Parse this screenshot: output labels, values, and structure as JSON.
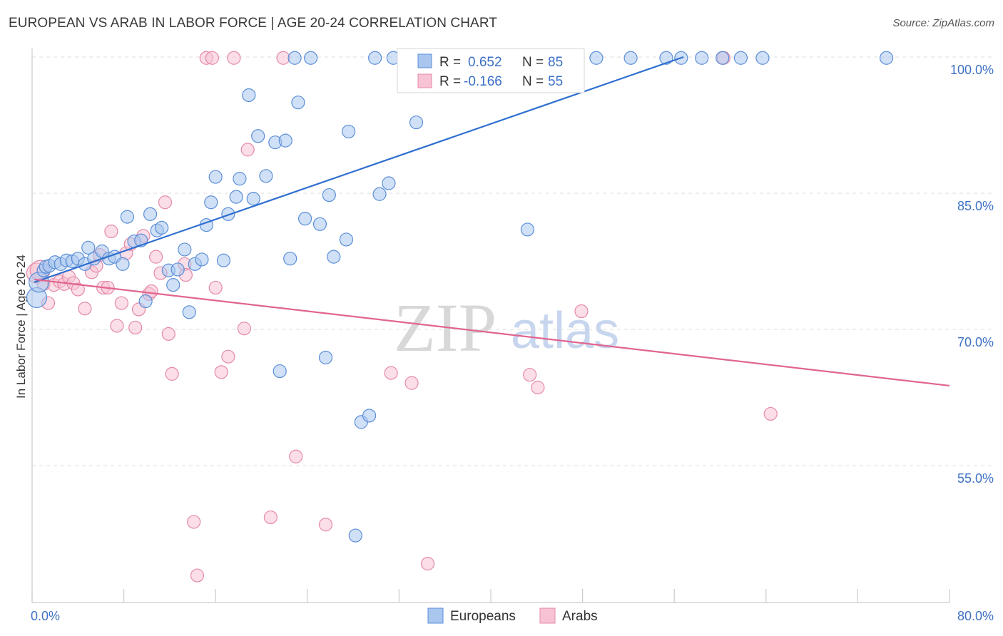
{
  "header": {
    "title": "EUROPEAN VS ARAB IN LABOR FORCE | AGE 20-24 CORRELATION CHART",
    "source": "Source: ZipAtlas.com"
  },
  "watermark": {
    "zip": "ZIP",
    "atlas": "atlas"
  },
  "colors": {
    "europeans_fill": "#a9c6ef",
    "europeans_stroke": "#5b8fd8",
    "europeans_line": "#2f6fd0",
    "arabs_fill": "#f7c3d4",
    "arabs_stroke": "#e58aa8",
    "arabs_line": "#e0658f",
    "tick_label": "#3f72c4",
    "grid": "#dddddd"
  },
  "legend_top": {
    "europeans": {
      "r_label": "R =",
      "r_value": "0.652",
      "n_label": "N =",
      "n_value": "85"
    },
    "arabs": {
      "r_label": "R =",
      "r_value": "-0.166",
      "n_label": "N =",
      "n_value": "55"
    }
  },
  "legend_bottom": {
    "europeans": "Europeans",
    "arabs": "Arabs"
  },
  "chart_data": {
    "type": "scatter",
    "title": "EUROPEAN VS ARAB IN LABOR FORCE | AGE 20-24 CORRELATION CHART",
    "xlabel": "",
    "ylabel": "In Labor Force | Age 20-24",
    "xlim": [
      0,
      80
    ],
    "ylim": [
      39,
      101
    ],
    "x_tick_labels": [
      {
        "value": 0,
        "label": "0.0%"
      },
      {
        "value": 80,
        "label": "80.0%"
      }
    ],
    "y_tick_labels": [
      {
        "value": 100,
        "label": "100.0%"
      },
      {
        "value": 85,
        "label": "85.0%"
      },
      {
        "value": 70,
        "label": "70.0%"
      },
      {
        "value": 55,
        "label": "55.0%"
      }
    ],
    "grid": true,
    "series": [
      {
        "name": "Europeans",
        "R": 0.652,
        "N": 85,
        "trend": {
          "x": [
            0.2,
            56.8
          ],
          "y": [
            75.2,
            100
          ]
        },
        "points": [
          [
            0.4,
            73.5
          ],
          [
            0.6,
            75.2
          ],
          [
            1.0,
            76.5
          ],
          [
            1.2,
            76.9
          ],
          [
            1.5,
            77.0
          ],
          [
            2.0,
            77.4
          ],
          [
            2.5,
            77.2
          ],
          [
            3.0,
            77.6
          ],
          [
            3.5,
            77.5
          ],
          [
            4.0,
            77.8
          ],
          [
            4.6,
            77.2
          ],
          [
            4.9,
            79.0
          ],
          [
            5.4,
            77.8
          ],
          [
            6.1,
            78.6
          ],
          [
            6.7,
            77.8
          ],
          [
            7.2,
            78.0
          ],
          [
            7.9,
            77.2
          ],
          [
            8.3,
            82.4
          ],
          [
            8.9,
            79.7
          ],
          [
            9.5,
            79.8
          ],
          [
            9.9,
            73.1
          ],
          [
            10.3,
            82.7
          ],
          [
            10.9,
            80.9
          ],
          [
            11.3,
            81.2
          ],
          [
            11.9,
            76.5
          ],
          [
            12.3,
            74.9
          ],
          [
            12.7,
            76.6
          ],
          [
            13.3,
            78.8
          ],
          [
            13.7,
            71.9
          ],
          [
            14.2,
            77.2
          ],
          [
            14.8,
            77.7
          ],
          [
            15.2,
            81.5
          ],
          [
            15.6,
            84.0
          ],
          [
            16.0,
            86.8
          ],
          [
            16.7,
            77.6
          ],
          [
            17.1,
            82.7
          ],
          [
            17.8,
            84.6
          ],
          [
            18.1,
            86.6
          ],
          [
            18.9,
            95.8
          ],
          [
            19.3,
            84.4
          ],
          [
            19.7,
            91.3
          ],
          [
            20.4,
            86.9
          ],
          [
            21.2,
            90.6
          ],
          [
            21.6,
            65.4
          ],
          [
            22.1,
            90.8
          ],
          [
            22.5,
            77.8
          ],
          [
            22.9,
            99.9
          ],
          [
            23.2,
            95.0
          ],
          [
            23.8,
            82.2
          ],
          [
            24.3,
            99.9
          ],
          [
            25.1,
            81.6
          ],
          [
            25.6,
            66.9
          ],
          [
            25.9,
            84.8
          ],
          [
            26.3,
            78.0
          ],
          [
            27.4,
            79.9
          ],
          [
            27.6,
            91.8
          ],
          [
            28.2,
            47.3
          ],
          [
            28.7,
            59.8
          ],
          [
            29.4,
            60.5
          ],
          [
            29.9,
            99.9
          ],
          [
            30.3,
            84.9
          ],
          [
            31.1,
            86.1
          ],
          [
            31.5,
            99.9
          ],
          [
            32.8,
            99.9
          ],
          [
            33.5,
            92.8
          ],
          [
            34.4,
            99.9
          ],
          [
            35.3,
            99.9
          ],
          [
            36.5,
            99.9
          ],
          [
            38.2,
            99.9
          ],
          [
            39.3,
            99.9
          ],
          [
            40.1,
            99.9
          ],
          [
            41.3,
            99.9
          ],
          [
            42.3,
            99.9
          ],
          [
            43.2,
            81.0
          ],
          [
            44.1,
            99.9
          ],
          [
            46.2,
            99.9
          ],
          [
            49.2,
            99.9
          ],
          [
            52.2,
            99.9
          ],
          [
            55.3,
            99.9
          ],
          [
            56.6,
            99.9
          ],
          [
            58.4,
            99.9
          ],
          [
            60.2,
            99.9
          ],
          [
            61.8,
            99.9
          ],
          [
            63.7,
            99.9
          ],
          [
            74.5,
            99.9
          ]
        ]
      },
      {
        "name": "Arabs",
        "R": -0.166,
        "N": 55,
        "trend": {
          "x": [
            0.2,
            80
          ],
          "y": [
            75.5,
            63.8
          ]
        },
        "points": [
          [
            0.4,
            76.2
          ],
          [
            0.7,
            76.5
          ],
          [
            1.0,
            75.0
          ],
          [
            1.4,
            72.9
          ],
          [
            1.9,
            74.9
          ],
          [
            2.4,
            75.3
          ],
          [
            2.8,
            75.0
          ],
          [
            3.2,
            75.8
          ],
          [
            3.6,
            75.1
          ],
          [
            4.0,
            74.4
          ],
          [
            4.6,
            72.3
          ],
          [
            5.2,
            76.3
          ],
          [
            5.6,
            77.0
          ],
          [
            5.9,
            78.2
          ],
          [
            6.2,
            74.6
          ],
          [
            6.6,
            74.6
          ],
          [
            6.9,
            80.8
          ],
          [
            7.4,
            70.4
          ],
          [
            7.8,
            72.9
          ],
          [
            8.2,
            78.4
          ],
          [
            8.6,
            79.4
          ],
          [
            9.0,
            70.2
          ],
          [
            9.3,
            72.2
          ],
          [
            9.7,
            80.3
          ],
          [
            10.2,
            73.9
          ],
          [
            10.4,
            74.2
          ],
          [
            10.8,
            78.0
          ],
          [
            11.2,
            76.2
          ],
          [
            11.6,
            84.0
          ],
          [
            11.9,
            69.5
          ],
          [
            12.2,
            65.1
          ],
          [
            13.3,
            77.2
          ],
          [
            13.4,
            76.0
          ],
          [
            14.1,
            48.8
          ],
          [
            14.4,
            42.9
          ],
          [
            15.2,
            99.9
          ],
          [
            15.7,
            99.9
          ],
          [
            16.0,
            74.6
          ],
          [
            16.5,
            65.3
          ],
          [
            17.1,
            67.0
          ],
          [
            17.6,
            99.9
          ],
          [
            18.5,
            70.1
          ],
          [
            18.8,
            89.8
          ],
          [
            20.8,
            49.3
          ],
          [
            21.9,
            99.9
          ],
          [
            23.0,
            56.0
          ],
          [
            25.6,
            48.5
          ],
          [
            31.3,
            65.2
          ],
          [
            33.1,
            64.1
          ],
          [
            34.5,
            44.2
          ],
          [
            43.4,
            65.0
          ],
          [
            44.1,
            63.6
          ],
          [
            47.9,
            72.0
          ],
          [
            60.3,
            99.9
          ],
          [
            64.4,
            60.7
          ]
        ]
      }
    ]
  }
}
